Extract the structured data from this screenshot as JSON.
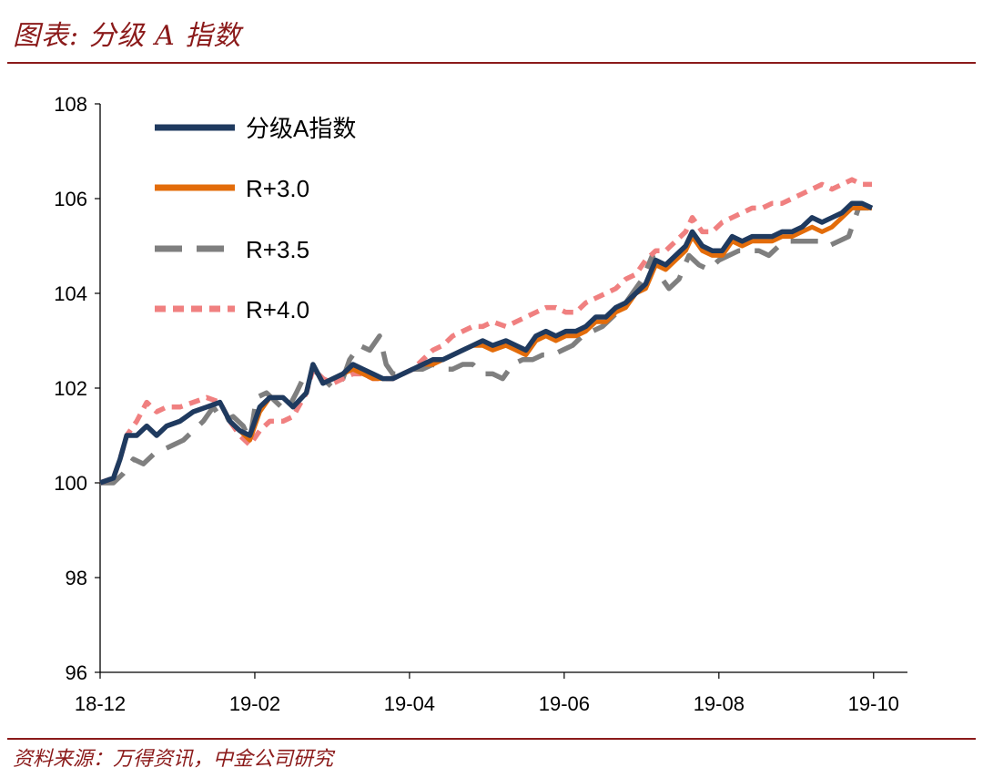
{
  "header": {
    "title": "图表: 分级 A 指数"
  },
  "footer": {
    "source": "资料来源：万得资讯，中金公司研究"
  },
  "colors": {
    "accent": "#8B1A1A"
  },
  "chart_data": {
    "type": "line",
    "ylim": [
      96,
      108
    ],
    "y_ticks": [
      "96",
      "98",
      "100",
      "102",
      "104",
      "106",
      "108"
    ],
    "x_ticks": [
      "18-12",
      "19-02",
      "19-04",
      "19-06",
      "19-08",
      "19-10"
    ],
    "legend_position": "top-left",
    "grid": false,
    "series": [
      {
        "name": "分级A指数",
        "color": "#1F3A5F",
        "dash": "solid",
        "points": [
          [
            0,
            100.0
          ],
          [
            4,
            100.1
          ],
          [
            6,
            100.5
          ],
          [
            8,
            101.0
          ],
          [
            11,
            101.0
          ],
          [
            14,
            101.2
          ],
          [
            17,
            101.0
          ],
          [
            20,
            101.2
          ],
          [
            24,
            101.3
          ],
          [
            28,
            101.5
          ],
          [
            32,
            101.6
          ],
          [
            36,
            101.7
          ],
          [
            39,
            101.3
          ],
          [
            42,
            101.1
          ],
          [
            45,
            101.0
          ],
          [
            48,
            101.6
          ],
          [
            51,
            101.8
          ],
          [
            55,
            101.8
          ],
          [
            58,
            101.6
          ],
          [
            62,
            101.9
          ],
          [
            64,
            102.5
          ],
          [
            67,
            102.1
          ],
          [
            70,
            102.2
          ],
          [
            73,
            102.3
          ],
          [
            76,
            102.5
          ],
          [
            79,
            102.4
          ],
          [
            82,
            102.3
          ],
          [
            85,
            102.2
          ],
          [
            88,
            102.2
          ],
          [
            91,
            102.3
          ],
          [
            94,
            102.4
          ],
          [
            97,
            102.5
          ],
          [
            100,
            102.6
          ],
          [
            103,
            102.6
          ],
          [
            106,
            102.7
          ],
          [
            109,
            102.8
          ],
          [
            112,
            102.9
          ],
          [
            115,
            103.0
          ],
          [
            118,
            102.9
          ],
          [
            122,
            103.0
          ],
          [
            125,
            102.9
          ],
          [
            128,
            102.8
          ],
          [
            131,
            103.1
          ],
          [
            134,
            103.2
          ],
          [
            137,
            103.1
          ],
          [
            140,
            103.2
          ],
          [
            143,
            103.2
          ],
          [
            146,
            103.3
          ],
          [
            149,
            103.5
          ],
          [
            152,
            103.5
          ],
          [
            155,
            103.7
          ],
          [
            158,
            103.8
          ],
          [
            161,
            104.0
          ],
          [
            164,
            104.2
          ],
          [
            167,
            104.7
          ],
          [
            170,
            104.6
          ],
          [
            173,
            104.8
          ],
          [
            176,
            105.0
          ],
          [
            178,
            105.3
          ],
          [
            181,
            105.0
          ],
          [
            184,
            104.9
          ],
          [
            187,
            104.9
          ],
          [
            190,
            105.2
          ],
          [
            193,
            105.1
          ],
          [
            196,
            105.2
          ],
          [
            199,
            105.2
          ],
          [
            202,
            105.2
          ],
          [
            205,
            105.3
          ],
          [
            208,
            105.3
          ],
          [
            211,
            105.4
          ],
          [
            214,
            105.6
          ],
          [
            217,
            105.5
          ],
          [
            220,
            105.6
          ],
          [
            223,
            105.7
          ],
          [
            226,
            105.9
          ],
          [
            229,
            105.9
          ],
          [
            232,
            105.8
          ]
        ]
      },
      {
        "name": "R+3.0",
        "color": "#E36C0A",
        "dash": "solid",
        "points": [
          [
            0,
            100.0
          ],
          [
            4,
            100.1
          ],
          [
            6,
            100.5
          ],
          [
            8,
            101.0
          ],
          [
            11,
            101.0
          ],
          [
            14,
            101.2
          ],
          [
            17,
            101.0
          ],
          [
            20,
            101.2
          ],
          [
            24,
            101.3
          ],
          [
            28,
            101.5
          ],
          [
            32,
            101.6
          ],
          [
            36,
            101.7
          ],
          [
            39,
            101.3
          ],
          [
            42,
            101.1
          ],
          [
            45,
            100.9
          ],
          [
            48,
            101.5
          ],
          [
            51,
            101.8
          ],
          [
            55,
            101.8
          ],
          [
            58,
            101.6
          ],
          [
            62,
            101.9
          ],
          [
            64,
            102.5
          ],
          [
            67,
            102.1
          ],
          [
            70,
            102.2
          ],
          [
            73,
            102.3
          ],
          [
            76,
            102.4
          ],
          [
            79,
            102.3
          ],
          [
            82,
            102.2
          ],
          [
            85,
            102.2
          ],
          [
            88,
            102.2
          ],
          [
            91,
            102.3
          ],
          [
            94,
            102.4
          ],
          [
            97,
            102.5
          ],
          [
            100,
            102.5
          ],
          [
            103,
            102.6
          ],
          [
            106,
            102.7
          ],
          [
            109,
            102.8
          ],
          [
            112,
            102.9
          ],
          [
            115,
            102.9
          ],
          [
            118,
            102.8
          ],
          [
            122,
            102.9
          ],
          [
            125,
            102.8
          ],
          [
            128,
            102.7
          ],
          [
            131,
            103.0
          ],
          [
            134,
            103.1
          ],
          [
            137,
            103.0
          ],
          [
            140,
            103.1
          ],
          [
            143,
            103.1
          ],
          [
            146,
            103.2
          ],
          [
            149,
            103.4
          ],
          [
            152,
            103.4
          ],
          [
            155,
            103.6
          ],
          [
            158,
            103.7
          ],
          [
            161,
            104.0
          ],
          [
            164,
            104.1
          ],
          [
            167,
            104.6
          ],
          [
            170,
            104.5
          ],
          [
            173,
            104.7
          ],
          [
            176,
            104.9
          ],
          [
            178,
            105.2
          ],
          [
            181,
            104.9
          ],
          [
            184,
            104.8
          ],
          [
            187,
            104.8
          ],
          [
            190,
            105.1
          ],
          [
            193,
            105.0
          ],
          [
            196,
            105.1
          ],
          [
            199,
            105.1
          ],
          [
            202,
            105.1
          ],
          [
            205,
            105.2
          ],
          [
            208,
            105.2
          ],
          [
            211,
            105.3
          ],
          [
            214,
            105.4
          ],
          [
            217,
            105.3
          ],
          [
            220,
            105.4
          ],
          [
            223,
            105.6
          ],
          [
            226,
            105.8
          ],
          [
            229,
            105.8
          ],
          [
            232,
            105.8
          ]
        ]
      },
      {
        "name": "R+3.5",
        "color": "#7F7F7F",
        "dash": "long",
        "points": [
          [
            0,
            100.0
          ],
          [
            4,
            100.0
          ],
          [
            7,
            100.2
          ],
          [
            10,
            100.5
          ],
          [
            13,
            100.4
          ],
          [
            16,
            100.6
          ],
          [
            19,
            100.7
          ],
          [
            22,
            100.8
          ],
          [
            25,
            100.9
          ],
          [
            28,
            101.1
          ],
          [
            31,
            101.3
          ],
          [
            34,
            101.6
          ],
          [
            37,
            101.3
          ],
          [
            40,
            101.4
          ],
          [
            43,
            101.2
          ],
          [
            45,
            100.9
          ],
          [
            47,
            101.8
          ],
          [
            50,
            101.9
          ],
          [
            53,
            101.7
          ],
          [
            56,
            101.5
          ],
          [
            59,
            101.9
          ],
          [
            61,
            102.2
          ],
          [
            64,
            102.4
          ],
          [
            67,
            102.2
          ],
          [
            70,
            102.0
          ],
          [
            73,
            102.2
          ],
          [
            75,
            102.6
          ],
          [
            78,
            102.9
          ],
          [
            81,
            102.8
          ],
          [
            84,
            103.1
          ],
          [
            86,
            102.5
          ],
          [
            88,
            102.3
          ],
          [
            91,
            102.3
          ],
          [
            94,
            102.4
          ],
          [
            97,
            102.4
          ],
          [
            100,
            102.5
          ],
          [
            103,
            102.4
          ],
          [
            106,
            102.4
          ],
          [
            109,
            102.5
          ],
          [
            112,
            102.5
          ],
          [
            115,
            102.3
          ],
          [
            118,
            102.3
          ],
          [
            121,
            102.2
          ],
          [
            124,
            102.5
          ],
          [
            127,
            102.6
          ],
          [
            130,
            102.6
          ],
          [
            133,
            102.7
          ],
          [
            136,
            102.7
          ],
          [
            139,
            102.8
          ],
          [
            142,
            102.9
          ],
          [
            145,
            103.1
          ],
          [
            148,
            103.2
          ],
          [
            151,
            103.3
          ],
          [
            154,
            103.5
          ],
          [
            157,
            103.7
          ],
          [
            160,
            104.0
          ],
          [
            163,
            104.3
          ],
          [
            166,
            104.8
          ],
          [
            168,
            104.4
          ],
          [
            171,
            104.1
          ],
          [
            174,
            104.3
          ],
          [
            177,
            104.8
          ],
          [
            180,
            104.6
          ],
          [
            183,
            104.5
          ],
          [
            186,
            104.7
          ],
          [
            189,
            104.8
          ],
          [
            192,
            104.9
          ],
          [
            195,
            104.9
          ],
          [
            198,
            104.9
          ],
          [
            201,
            104.8
          ],
          [
            204,
            105.0
          ],
          [
            207,
            105.1
          ],
          [
            210,
            105.1
          ],
          [
            213,
            105.1
          ],
          [
            216,
            105.1
          ],
          [
            219,
            105.0
          ],
          [
            222,
            105.1
          ],
          [
            225,
            105.2
          ],
          [
            228,
            105.8
          ],
          [
            231,
            105.8
          ]
        ]
      },
      {
        "name": "R+4.0",
        "color": "#F08080",
        "dash": "short",
        "points": [
          [
            0,
            100.0
          ],
          [
            4,
            100.1
          ],
          [
            6,
            100.5
          ],
          [
            8,
            101.0
          ],
          [
            11,
            101.3
          ],
          [
            14,
            101.7
          ],
          [
            17,
            101.5
          ],
          [
            20,
            101.6
          ],
          [
            24,
            101.6
          ],
          [
            28,
            101.7
          ],
          [
            32,
            101.8
          ],
          [
            36,
            101.7
          ],
          [
            39,
            101.3
          ],
          [
            42,
            101.0
          ],
          [
            45,
            100.8
          ],
          [
            48,
            101.1
          ],
          [
            51,
            101.3
          ],
          [
            55,
            101.3
          ],
          [
            58,
            101.4
          ],
          [
            62,
            101.9
          ],
          [
            64,
            102.4
          ],
          [
            67,
            102.2
          ],
          [
            70,
            102.1
          ],
          [
            73,
            102.2
          ],
          [
            76,
            102.3
          ],
          [
            79,
            102.3
          ],
          [
            82,
            102.2
          ],
          [
            85,
            102.2
          ],
          [
            88,
            102.2
          ],
          [
            91,
            102.3
          ],
          [
            94,
            102.4
          ],
          [
            97,
            102.6
          ],
          [
            100,
            102.8
          ],
          [
            103,
            102.9
          ],
          [
            106,
            103.1
          ],
          [
            109,
            103.2
          ],
          [
            112,
            103.3
          ],
          [
            115,
            103.3
          ],
          [
            118,
            103.4
          ],
          [
            122,
            103.3
          ],
          [
            125,
            103.4
          ],
          [
            128,
            103.5
          ],
          [
            131,
            103.6
          ],
          [
            134,
            103.7
          ],
          [
            137,
            103.7
          ],
          [
            140,
            103.6
          ],
          [
            143,
            103.6
          ],
          [
            146,
            103.8
          ],
          [
            149,
            103.9
          ],
          [
            152,
            104.0
          ],
          [
            155,
            104.1
          ],
          [
            158,
            104.3
          ],
          [
            161,
            104.4
          ],
          [
            164,
            104.7
          ],
          [
            167,
            104.9
          ],
          [
            170,
            104.9
          ],
          [
            173,
            105.1
          ],
          [
            176,
            105.3
          ],
          [
            178,
            105.6
          ],
          [
            181,
            105.3
          ],
          [
            184,
            105.3
          ],
          [
            187,
            105.5
          ],
          [
            190,
            105.6
          ],
          [
            193,
            105.7
          ],
          [
            196,
            105.8
          ],
          [
            199,
            105.8
          ],
          [
            202,
            105.9
          ],
          [
            205,
            105.9
          ],
          [
            208,
            106.0
          ],
          [
            211,
            106.1
          ],
          [
            214,
            106.2
          ],
          [
            217,
            106.3
          ],
          [
            220,
            106.2
          ],
          [
            223,
            106.3
          ],
          [
            226,
            106.4
          ],
          [
            229,
            106.3
          ],
          [
            232,
            106.3
          ]
        ]
      }
    ]
  }
}
